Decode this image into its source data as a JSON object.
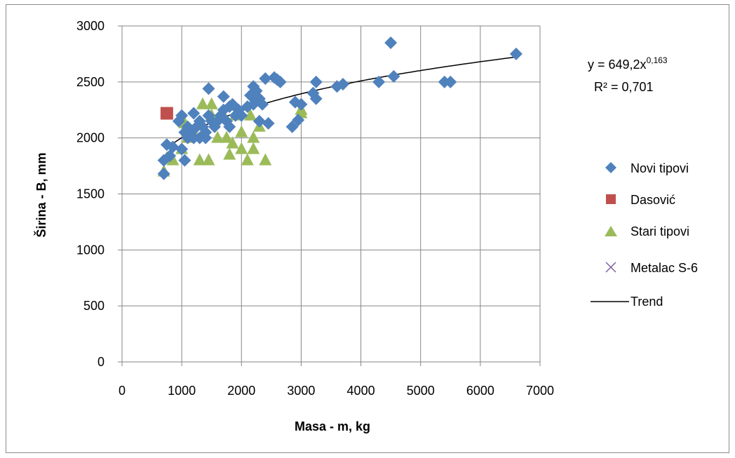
{
  "chart_data": {
    "type": "scatter",
    "title": "",
    "xlabel": "Masa - m, kg",
    "ylabel": "Širina - B, mm",
    "xlim": [
      0,
      7000
    ],
    "ylim": [
      0,
      3000
    ],
    "x_ticks": [
      "0",
      "1000",
      "2000",
      "3000",
      "4000",
      "5000",
      "6000",
      "7000"
    ],
    "y_ticks": [
      "0",
      "500",
      "1000",
      "1500",
      "2000",
      "2500",
      "3000"
    ],
    "grid": true,
    "legend_position": "right",
    "colors": {
      "novi": "#4f81bd",
      "dasovic": "#c0504d",
      "stari": "#9bbb59",
      "metalac": "#8064a2",
      "trend": "#000000"
    },
    "trendline": {
      "name": "Trend",
      "equation_prefix": "y = 649,2x",
      "equation_exponent": "0,163",
      "r_squared": "R² = 0,701",
      "a": 649.2,
      "b": 0.163,
      "x_from": 750,
      "x_to": 6600
    },
    "series": [
      {
        "name": "Novi tipovi",
        "marker": "diamond",
        "points": [
          [
            700,
            1680
          ],
          [
            700,
            1800
          ],
          [
            750,
            1940
          ],
          [
            800,
            1840
          ],
          [
            850,
            1920
          ],
          [
            950,
            2150
          ],
          [
            1000,
            1900
          ],
          [
            1000,
            2200
          ],
          [
            1050,
            1800
          ],
          [
            1050,
            2050
          ],
          [
            1100,
            2000
          ],
          [
            1100,
            2100
          ],
          [
            1150,
            2050
          ],
          [
            1200,
            2220
          ],
          [
            1200,
            2000
          ],
          [
            1250,
            2100
          ],
          [
            1300,
            2000
          ],
          [
            1300,
            2150
          ],
          [
            1350,
            2100
          ],
          [
            1400,
            2000
          ],
          [
            1400,
            2050
          ],
          [
            1450,
            2440
          ],
          [
            1450,
            2200
          ],
          [
            1500,
            2150
          ],
          [
            1550,
            2100
          ],
          [
            1600,
            2150
          ],
          [
            1650,
            2200
          ],
          [
            1700,
            2370
          ],
          [
            1700,
            2250
          ],
          [
            1750,
            2150
          ],
          [
            1800,
            2100
          ],
          [
            1800,
            2280
          ],
          [
            1850,
            2300
          ],
          [
            1900,
            2200
          ],
          [
            1950,
            2250
          ],
          [
            2000,
            2200
          ],
          [
            2100,
            2280
          ],
          [
            2150,
            2380
          ],
          [
            2200,
            2460
          ],
          [
            2200,
            2300
          ],
          [
            2250,
            2420
          ],
          [
            2300,
            2350
          ],
          [
            2300,
            2150
          ],
          [
            2350,
            2300
          ],
          [
            2400,
            2530
          ],
          [
            2450,
            2130
          ],
          [
            2550,
            2540
          ],
          [
            2600,
            2520
          ],
          [
            2650,
            2500
          ],
          [
            2850,
            2100
          ],
          [
            2900,
            2320
          ],
          [
            2950,
            2160
          ],
          [
            3000,
            2300
          ],
          [
            3200,
            2400
          ],
          [
            3250,
            2500
          ],
          [
            3250,
            2350
          ],
          [
            3600,
            2460
          ],
          [
            3700,
            2480
          ],
          [
            4300,
            2500
          ],
          [
            4500,
            2850
          ],
          [
            4550,
            2550
          ],
          [
            5400,
            2500
          ],
          [
            5500,
            2500
          ],
          [
            6600,
            2750
          ]
        ]
      },
      {
        "name": "Dasović",
        "marker": "square",
        "points": [
          [
            750,
            2220
          ]
        ]
      },
      {
        "name": "Stari tipovi",
        "marker": "triangle",
        "points": [
          [
            700,
            1700
          ],
          [
            750,
            1820
          ],
          [
            850,
            1800
          ],
          [
            1000,
            1900
          ],
          [
            1050,
            2130
          ],
          [
            1100,
            2000
          ],
          [
            1200,
            2050
          ],
          [
            1300,
            1800
          ],
          [
            1350,
            2300
          ],
          [
            1450,
            1800
          ],
          [
            1500,
            2200
          ],
          [
            1500,
            2300
          ],
          [
            1600,
            2000
          ],
          [
            1700,
            2200
          ],
          [
            1750,
            2000
          ],
          [
            1800,
            1850
          ],
          [
            1850,
            1950
          ],
          [
            1900,
            2200
          ],
          [
            2000,
            1900
          ],
          [
            2000,
            2050
          ],
          [
            2100,
            1800
          ],
          [
            2150,
            2200
          ],
          [
            2200,
            1900
          ],
          [
            2200,
            2000
          ],
          [
            2300,
            2100
          ],
          [
            2400,
            1800
          ],
          [
            3000,
            2220
          ],
          [
            3000,
            2250
          ]
        ]
      },
      {
        "name": "Metalac S-6",
        "marker": "x",
        "points": []
      }
    ]
  }
}
